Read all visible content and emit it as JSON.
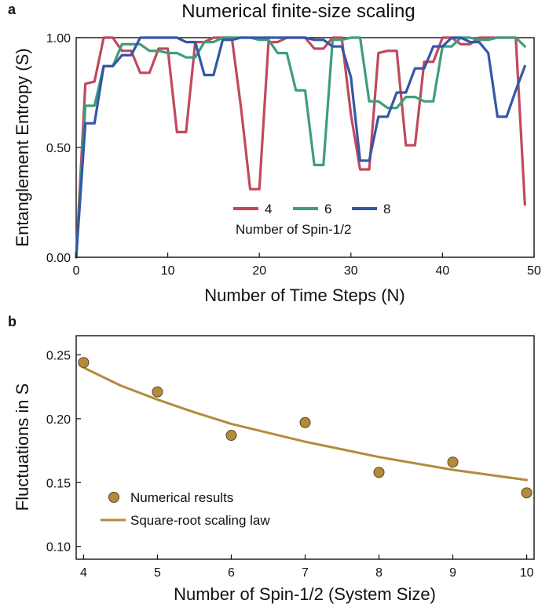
{
  "colors": {
    "series_4": "#c0495e",
    "series_6": "#3e9e7a",
    "series_8": "#3457a6",
    "numerical": "#b38b3c",
    "numerical_stroke": "#5a4520",
    "fit_line": "#b38b3c"
  },
  "chart_data": [
    {
      "panel": "a",
      "type": "line",
      "title": "Numerical finite-size scaling",
      "xlabel": "Number of Time Steps (N)",
      "ylabel": "Entanglement Entropy (S)",
      "xlim": [
        0,
        50
      ],
      "ylim": [
        0,
        1
      ],
      "xticks": [
        "0",
        "10",
        "20",
        "30",
        "40",
        "50"
      ],
      "yticks": [
        "0.00",
        "0.50",
        "1.00"
      ],
      "legend_title": "Number of Spin-1/2",
      "legend_position": "lower-center",
      "x": [
        0,
        1,
        2,
        3,
        4,
        5,
        6,
        7,
        8,
        9,
        10,
        11,
        12,
        13,
        14,
        15,
        16,
        17,
        18,
        19,
        20,
        21,
        22,
        23,
        24,
        25,
        26,
        27,
        28,
        29,
        30,
        31,
        32,
        33,
        34,
        35,
        36,
        37,
        38,
        39,
        40,
        41,
        42,
        43,
        44,
        45,
        46,
        47,
        48,
        49
      ],
      "series": [
        {
          "name": "4",
          "values": [
            0,
            0.79,
            0.8,
            1.0,
            1.0,
            0.94,
            0.94,
            0.84,
            0.84,
            0.95,
            0.95,
            0.57,
            0.57,
            0.98,
            0.98,
            1.0,
            1.0,
            1.0,
            0.68,
            0.31,
            0.31,
            0.98,
            0.98,
            1.0,
            1.0,
            1.0,
            0.95,
            0.95,
            1.0,
            1.0,
            0.65,
            0.4,
            0.4,
            0.93,
            0.94,
            0.94,
            0.51,
            0.51,
            0.89,
            0.89,
            1.0,
            1.0,
            0.97,
            0.97,
            1.0,
            1.0,
            1.0,
            1.0,
            1.0,
            0.24
          ]
        },
        {
          "name": "6",
          "values": [
            0,
            0.69,
            0.69,
            0.87,
            0.87,
            0.97,
            0.97,
            0.97,
            0.94,
            0.94,
            0.93,
            0.93,
            0.91,
            0.91,
            0.98,
            0.98,
            1.0,
            1.0,
            1.0,
            1.0,
            0.99,
            0.99,
            0.93,
            0.93,
            0.76,
            0.76,
            0.42,
            0.42,
            0.99,
            0.99,
            1.0,
            1.0,
            0.71,
            0.71,
            0.68,
            0.68,
            0.73,
            0.73,
            0.71,
            0.71,
            0.96,
            0.96,
            1.0,
            1.0,
            0.99,
            0.99,
            1.0,
            1.0,
            1.0,
            0.96
          ]
        },
        {
          "name": "8",
          "values": [
            0,
            0.61,
            0.61,
            0.87,
            0.87,
            0.92,
            0.92,
            1.0,
            1.0,
            1.0,
            1.0,
            1.0,
            0.98,
            0.98,
            0.83,
            0.83,
            0.99,
            0.99,
            1.0,
            1.0,
            1.0,
            1.0,
            1.0,
            1.0,
            1.0,
            1.0,
            0.99,
            0.99,
            0.96,
            0.96,
            0.82,
            0.44,
            0.44,
            0.64,
            0.64,
            0.75,
            0.75,
            0.86,
            0.86,
            0.96,
            0.96,
            1.0,
            1.0,
            0.98,
            0.98,
            0.93,
            0.64,
            0.64,
            0.76,
            0.87
          ]
        }
      ]
    },
    {
      "panel": "b",
      "type": "scatter",
      "xlabel": "Number of Spin-1/2 (System Size)",
      "ylabel": "Fluctuations in S",
      "xlim": [
        3.9,
        10.1
      ],
      "ylim": [
        0.09,
        0.265
      ],
      "xticks": [
        "4",
        "5",
        "6",
        "7",
        "8",
        "9",
        "10"
      ],
      "yticks": [
        "0.10",
        "0.15",
        "0.20",
        "0.25"
      ],
      "legend_position": "lower-left",
      "series": [
        {
          "name": "Numerical results",
          "kind": "points",
          "x": [
            4,
            5,
            6,
            7,
            8,
            9,
            10
          ],
          "values": [
            0.244,
            0.221,
            0.187,
            0.197,
            0.158,
            0.166,
            0.142
          ]
        },
        {
          "name": "Square-root scaling law",
          "kind": "line",
          "x": [
            4,
            4.5,
            5,
            5.5,
            6,
            6.5,
            7,
            7.5,
            8,
            8.5,
            9,
            9.5,
            10
          ],
          "values": [
            0.24,
            0.226,
            0.215,
            0.205,
            0.196,
            0.189,
            0.182,
            0.176,
            0.17,
            0.165,
            0.16,
            0.156,
            0.152
          ]
        }
      ]
    }
  ]
}
